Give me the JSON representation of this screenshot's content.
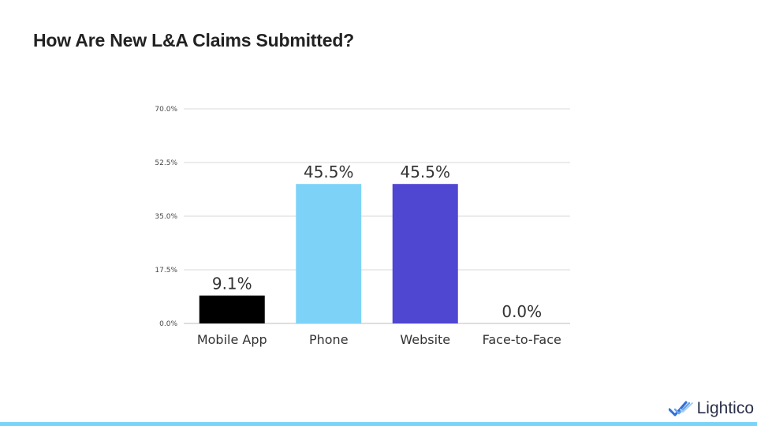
{
  "title": "How Are New L&A Claims Submitted?",
  "logo": {
    "text": "Lightico",
    "icon": "check-swoosh-icon",
    "color": "#2f6fd6"
  },
  "colors": {
    "accent_bar": "#7dd3f7",
    "gridline": "#d9d9d9"
  },
  "chart_data": {
    "type": "bar",
    "categories": [
      "Mobile App",
      "Phone",
      "Website",
      "Face-to-Face"
    ],
    "values": [
      9.1,
      45.5,
      45.5,
      0.0
    ],
    "value_labels": [
      "9.1%",
      "45.5%",
      "45.5%",
      "0.0%"
    ],
    "colors": [
      "#000000",
      "#7dd3f7",
      "#4f46d1",
      "#4f46d1"
    ],
    "ylim": [
      0,
      70
    ],
    "yticks": [
      0,
      17.5,
      35,
      52.5,
      70
    ],
    "ytick_labels": [
      "0.0%",
      "17.5%",
      "35.0%",
      "52.5%",
      "70.0%"
    ],
    "grid": true,
    "legend": "none"
  }
}
